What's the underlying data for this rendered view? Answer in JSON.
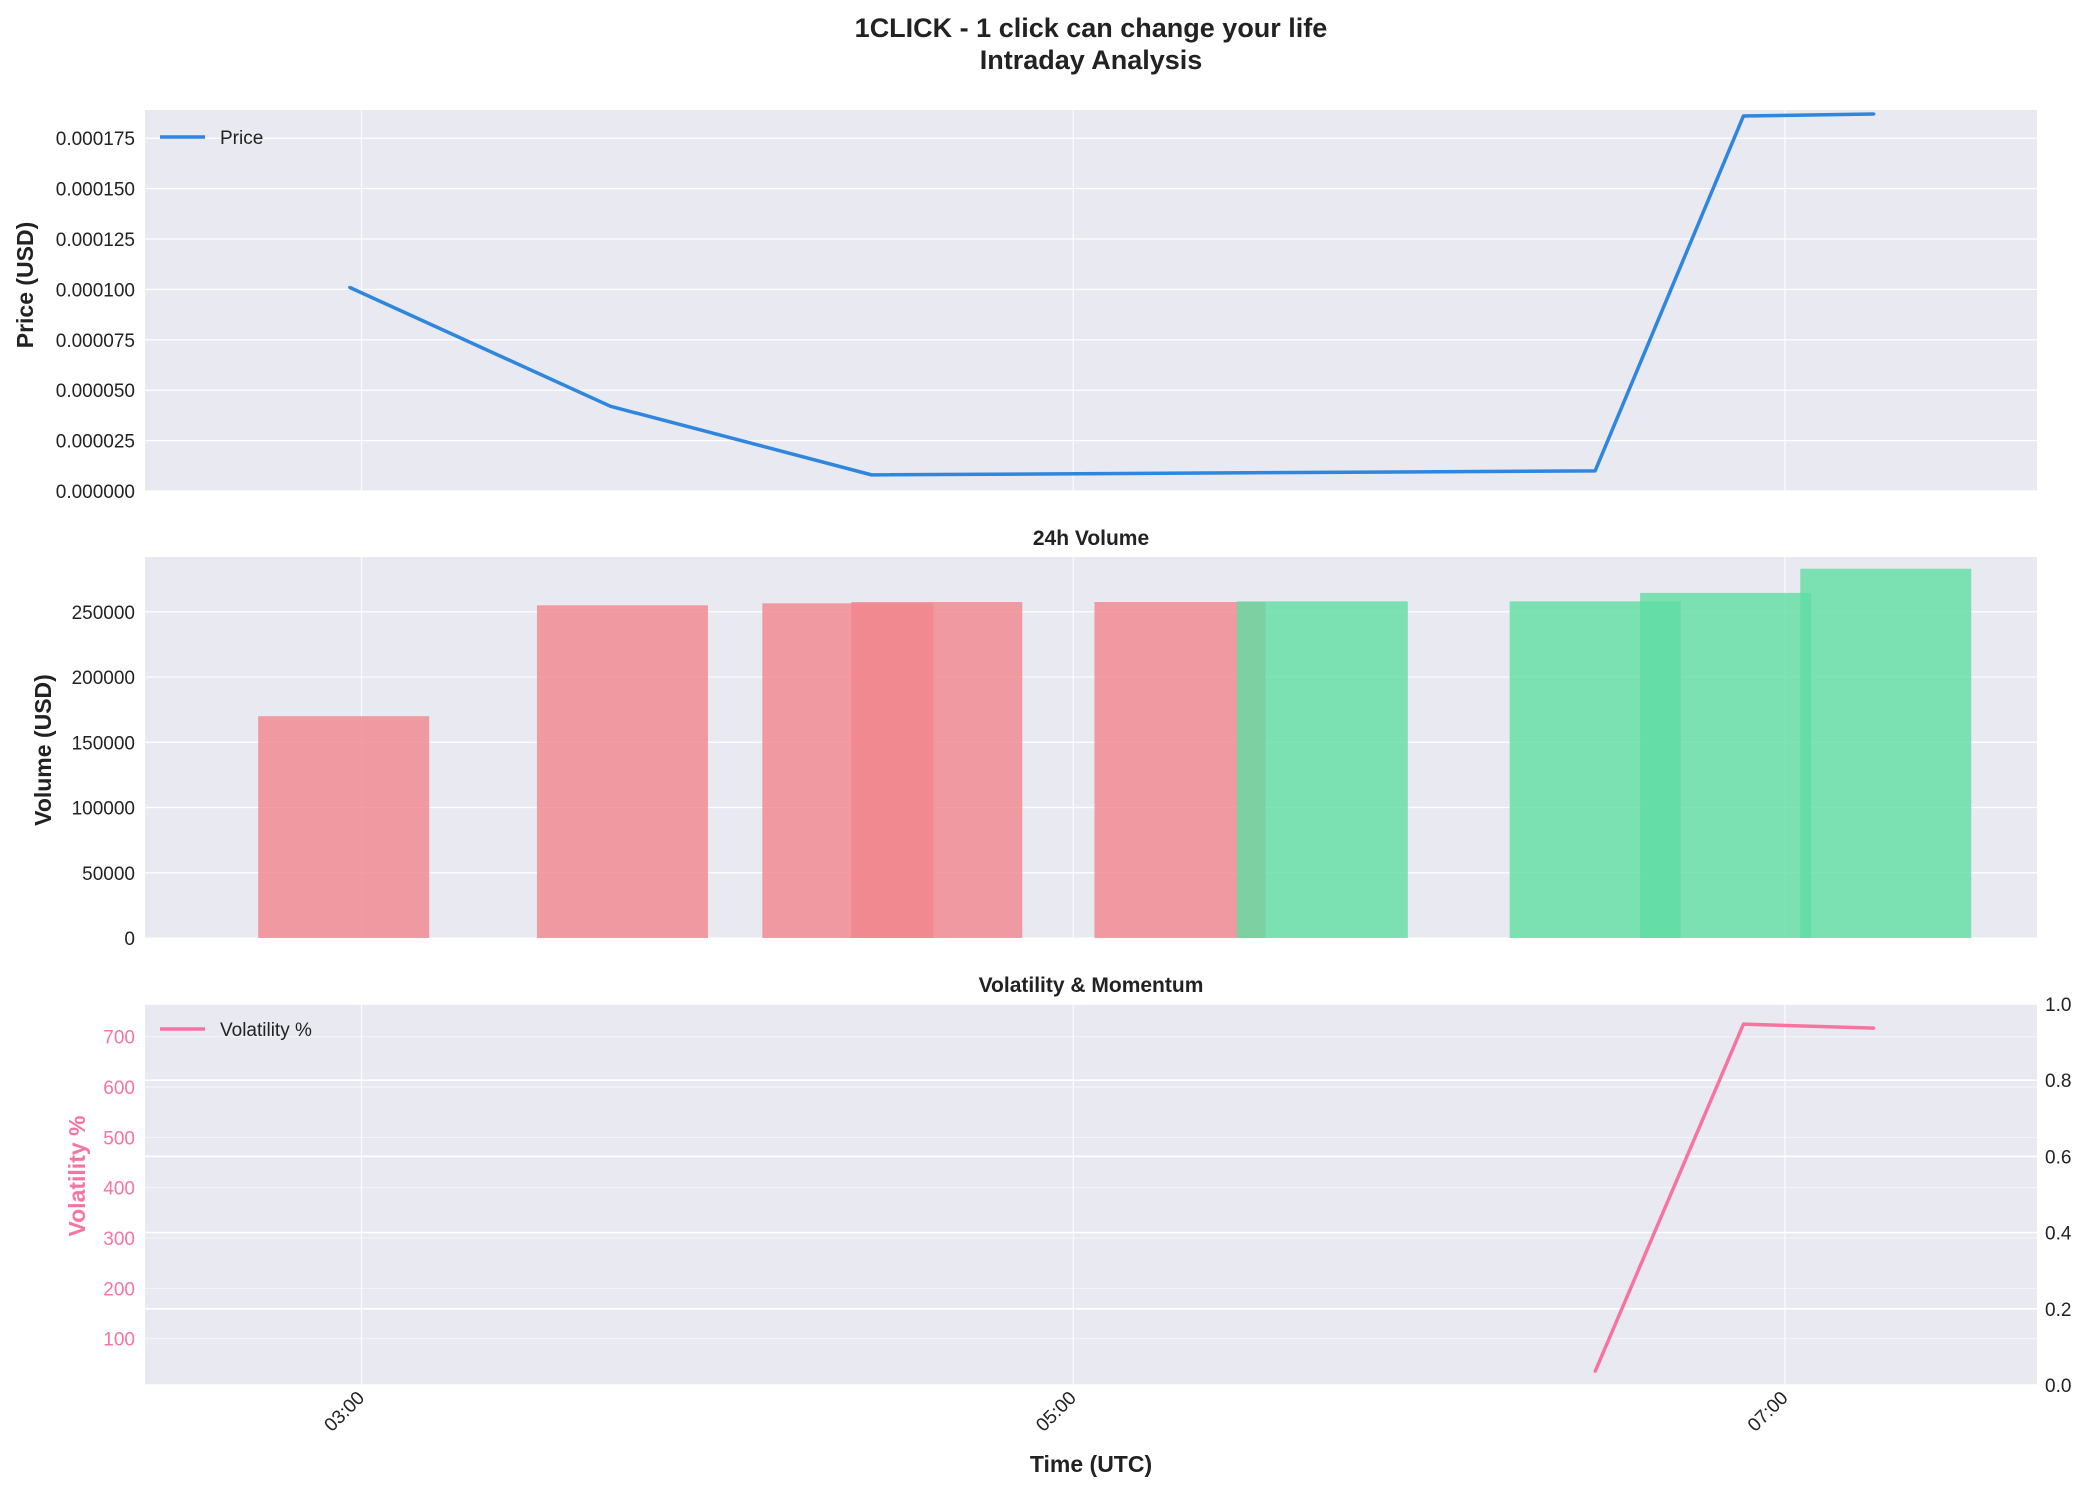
{
  "title_line1": "1CLICK - 1 click can change your life",
  "title_line2": "Intraday Analysis",
  "colors": {
    "panel_bg": "#e9e9f1",
    "price_line": "#2e86de",
    "vol_down": "#f1848c",
    "vol_up": "#5fddA2",
    "volatility": "#f6759e",
    "text": "#222222"
  },
  "chart_data": [
    {
      "type": "line",
      "ylabel": "Price (USD)",
      "ylim": [
        0,
        0.000189
      ],
      "yticks": [
        "0.000000",
        "0.000025",
        "0.000050",
        "0.000075",
        "0.000100",
        "0.000125",
        "0.000150",
        "0.000175"
      ],
      "ytick_values": [
        0,
        2.5e-05,
        5e-05,
        7.5e-05,
        0.0001,
        0.000125,
        0.00015,
        0.000175
      ],
      "legend": "top-left",
      "grid": true,
      "series": [
        {
          "name": "Price",
          "x": [
            "02:58",
            "03:42",
            "04:26",
            "06:28",
            "06:53",
            "07:15"
          ],
          "values": [
            0.000101,
            4.2e-05,
            8e-06,
            1e-05,
            0.000186,
            0.000187
          ]
        }
      ]
    },
    {
      "type": "bar",
      "title": "24h Volume",
      "ylabel": "Volume (USD)",
      "ylim": [
        0,
        292000
      ],
      "yticks": [
        "0",
        "50000",
        "100000",
        "150000",
        "200000",
        "250000"
      ],
      "ytick_values": [
        0,
        50000,
        100000,
        150000,
        200000,
        250000
      ],
      "grid": true,
      "bars": [
        {
          "x": "02:57",
          "value": 170000,
          "direction": "down"
        },
        {
          "x": "03:44",
          "value": 255000,
          "direction": "down"
        },
        {
          "x": "04:22",
          "value": 256500,
          "direction": "down"
        },
        {
          "x": "04:37",
          "value": 257500,
          "direction": "down"
        },
        {
          "x": "05:18",
          "value": 257500,
          "direction": "down"
        },
        {
          "x": "05:42",
          "value": 258000,
          "direction": "up"
        },
        {
          "x": "06:28",
          "value": 258000,
          "direction": "up"
        },
        {
          "x": "06:50",
          "value": 264500,
          "direction": "up"
        },
        {
          "x": "07:17",
          "value": 283000,
          "direction": "up"
        }
      ]
    },
    {
      "type": "line",
      "title": "Volatility & Momentum",
      "ylabel": "Volatility %",
      "xlabel": "Time (UTC)",
      "ylim": [
        8,
        765
      ],
      "yticks": [
        "100",
        "200",
        "300",
        "400",
        "500",
        "600",
        "700"
      ],
      "ytick_values": [
        100,
        200,
        300,
        400,
        500,
        600,
        700
      ],
      "y2lim": [
        0,
        1
      ],
      "y2ticks": [
        "0.0",
        "0.2",
        "0.4",
        "0.6",
        "0.8",
        "1.0"
      ],
      "y2tick_values": [
        0,
        0.2,
        0.4,
        0.6,
        0.8,
        1.0
      ],
      "xticks": [
        "03:00",
        "05:00",
        "07:00"
      ],
      "legend": "top-left",
      "grid": true,
      "series": [
        {
          "name": "Volatility %",
          "x": [
            "06:28",
            "06:53",
            "07:15"
          ],
          "values": [
            35,
            725,
            717
          ]
        }
      ]
    }
  ]
}
